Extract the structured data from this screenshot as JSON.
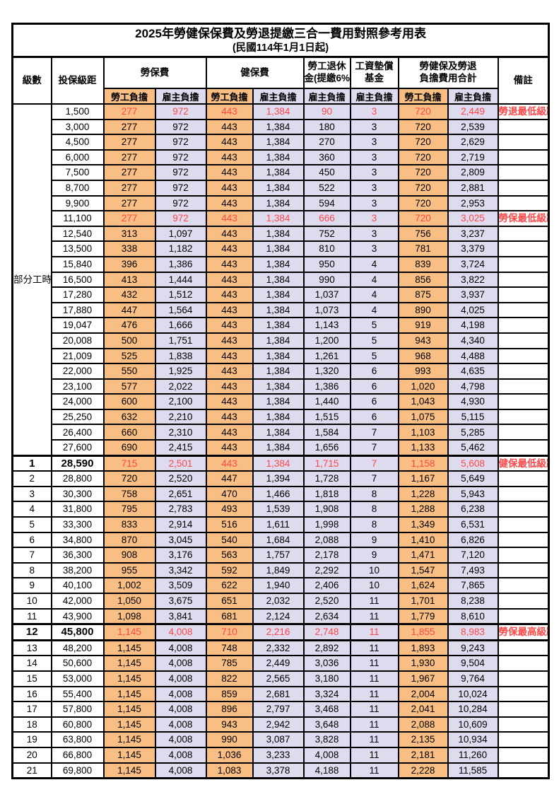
{
  "page": {
    "title": "2025年勞健保保費及勞退提繳三合一費用對照參考用表",
    "subtitle": "(民國114年1月1日起)"
  },
  "table": {
    "headers": {
      "level": "級數",
      "bracket": "投保級距",
      "labor_insurance": "勞保費",
      "health_insurance": "健保費",
      "pension": [
        "勞工退休",
        "金(提繳6%)"
      ],
      "wage_fund": [
        "工資墊償",
        "基金"
      ],
      "total": [
        "勞健保及勞退",
        "負擔費用合計"
      ],
      "remark": "備註",
      "employee_share": "勞工負擔",
      "employer_share": "雇主負擔"
    },
    "part_time_label": "部分工時",
    "part_time_row_count": 23,
    "colors": {
      "employee_bg": "#F8BE84",
      "employer_bg": "#DFDBEF",
      "highlight_red": "#FF4747"
    },
    "rows": [
      {
        "level": "",
        "bracket": "1,500",
        "values": [
          "277",
          "972",
          "443",
          "1,384",
          "90",
          "3",
          "720",
          "2,449"
        ],
        "remark": "勞退最低級距",
        "red": true
      },
      {
        "level": "",
        "bracket": "3,000",
        "values": [
          "277",
          "972",
          "443",
          "1,384",
          "180",
          "3",
          "720",
          "2,539"
        ]
      },
      {
        "level": "",
        "bracket": "4,500",
        "values": [
          "277",
          "972",
          "443",
          "1,384",
          "270",
          "3",
          "720",
          "2,629"
        ]
      },
      {
        "level": "",
        "bracket": "6,000",
        "values": [
          "277",
          "972",
          "443",
          "1,384",
          "360",
          "3",
          "720",
          "2,719"
        ]
      },
      {
        "level": "",
        "bracket": "7,500",
        "values": [
          "277",
          "972",
          "443",
          "1,384",
          "450",
          "3",
          "720",
          "2,809"
        ]
      },
      {
        "level": "",
        "bracket": "8,700",
        "values": [
          "277",
          "972",
          "443",
          "1,384",
          "522",
          "3",
          "720",
          "2,881"
        ]
      },
      {
        "level": "",
        "bracket": "9,900",
        "values": [
          "277",
          "972",
          "443",
          "1,384",
          "594",
          "3",
          "720",
          "2,953"
        ]
      },
      {
        "level": "",
        "bracket": "11,100",
        "values": [
          "277",
          "972",
          "443",
          "1,384",
          "666",
          "3",
          "720",
          "3,025"
        ],
        "remark": "勞保最低級距",
        "red": true
      },
      {
        "level": "",
        "bracket": "12,540",
        "values": [
          "313",
          "1,097",
          "443",
          "1,384",
          "752",
          "3",
          "756",
          "3,237"
        ]
      },
      {
        "level": "",
        "bracket": "13,500",
        "values": [
          "338",
          "1,182",
          "443",
          "1,384",
          "810",
          "3",
          "781",
          "3,379"
        ]
      },
      {
        "level": "",
        "bracket": "15,840",
        "values": [
          "396",
          "1,386",
          "443",
          "1,384",
          "950",
          "4",
          "839",
          "3,724"
        ]
      },
      {
        "level": "",
        "bracket": "16,500",
        "values": [
          "413",
          "1,444",
          "443",
          "1,384",
          "990",
          "4",
          "856",
          "3,822"
        ]
      },
      {
        "level": "",
        "bracket": "17,280",
        "values": [
          "432",
          "1,512",
          "443",
          "1,384",
          "1,037",
          "4",
          "875",
          "3,937"
        ]
      },
      {
        "level": "",
        "bracket": "17,880",
        "values": [
          "447",
          "1,564",
          "443",
          "1,384",
          "1,073",
          "4",
          "890",
          "4,025"
        ]
      },
      {
        "level": "",
        "bracket": "19,047",
        "values": [
          "476",
          "1,666",
          "443",
          "1,384",
          "1,143",
          "5",
          "919",
          "4,198"
        ]
      },
      {
        "level": "",
        "bracket": "20,008",
        "values": [
          "500",
          "1,751",
          "443",
          "1,384",
          "1,200",
          "5",
          "943",
          "4,340"
        ]
      },
      {
        "level": "",
        "bracket": "21,009",
        "values": [
          "525",
          "1,838",
          "443",
          "1,384",
          "1,261",
          "5",
          "968",
          "4,488"
        ]
      },
      {
        "level": "",
        "bracket": "22,000",
        "values": [
          "550",
          "1,925",
          "443",
          "1,384",
          "1,320",
          "6",
          "993",
          "4,635"
        ]
      },
      {
        "level": "",
        "bracket": "23,100",
        "values": [
          "577",
          "2,022",
          "443",
          "1,384",
          "1,386",
          "6",
          "1,020",
          "4,798"
        ]
      },
      {
        "level": "",
        "bracket": "24,000",
        "values": [
          "600",
          "2,100",
          "443",
          "1,384",
          "1,440",
          "6",
          "1,043",
          "4,930"
        ]
      },
      {
        "level": "",
        "bracket": "25,250",
        "values": [
          "632",
          "2,210",
          "443",
          "1,384",
          "1,515",
          "6",
          "1,075",
          "5,115"
        ]
      },
      {
        "level": "",
        "bracket": "26,400",
        "values": [
          "660",
          "2,310",
          "443",
          "1,384",
          "1,584",
          "7",
          "1,103",
          "5,285"
        ]
      },
      {
        "level": "",
        "bracket": "27,600",
        "values": [
          "690",
          "2,415",
          "443",
          "1,384",
          "1,656",
          "7",
          "1,133",
          "5,462"
        ]
      },
      {
        "level": "1",
        "bracket": "28,590",
        "values": [
          "715",
          "2,501",
          "443",
          "1,384",
          "1,715",
          "7",
          "1,158",
          "5,608"
        ],
        "remark": "健保最低級距",
        "red": true,
        "bold": true,
        "thick_top": true
      },
      {
        "level": "2",
        "bracket": "28,800",
        "values": [
          "720",
          "2,520",
          "447",
          "1,394",
          "1,728",
          "7",
          "1,167",
          "5,649"
        ]
      },
      {
        "level": "3",
        "bracket": "30,300",
        "values": [
          "758",
          "2,651",
          "470",
          "1,466",
          "1,818",
          "8",
          "1,228",
          "5,943"
        ]
      },
      {
        "level": "4",
        "bracket": "31,800",
        "values": [
          "795",
          "2,783",
          "493",
          "1,539",
          "1,908",
          "8",
          "1,288",
          "6,238"
        ]
      },
      {
        "level": "5",
        "bracket": "33,300",
        "values": [
          "833",
          "2,914",
          "516",
          "1,611",
          "1,998",
          "8",
          "1,349",
          "6,531"
        ]
      },
      {
        "level": "6",
        "bracket": "34,800",
        "values": [
          "870",
          "3,045",
          "540",
          "1,684",
          "2,088",
          "9",
          "1,410",
          "6,826"
        ]
      },
      {
        "level": "7",
        "bracket": "36,300",
        "values": [
          "908",
          "3,176",
          "563",
          "1,757",
          "2,178",
          "9",
          "1,471",
          "7,120"
        ]
      },
      {
        "level": "8",
        "bracket": "38,200",
        "values": [
          "955",
          "3,342",
          "592",
          "1,849",
          "2,292",
          "10",
          "1,547",
          "7,493"
        ]
      },
      {
        "level": "9",
        "bracket": "40,100",
        "values": [
          "1,002",
          "3,509",
          "622",
          "1,940",
          "2,406",
          "10",
          "1,624",
          "7,865"
        ]
      },
      {
        "level": "10",
        "bracket": "42,000",
        "values": [
          "1,050",
          "3,675",
          "651",
          "2,032",
          "2,520",
          "11",
          "1,701",
          "8,238"
        ]
      },
      {
        "level": "11",
        "bracket": "43,900",
        "values": [
          "1,098",
          "3,841",
          "681",
          "2,124",
          "2,634",
          "11",
          "1,779",
          "8,610"
        ]
      },
      {
        "level": "12",
        "bracket": "45,800",
        "values": [
          "1,145",
          "4,008",
          "710",
          "2,216",
          "2,748",
          "11",
          "1,855",
          "8,983"
        ],
        "remark": "勞保最高級距",
        "red": true,
        "bold": true,
        "thick_top": true,
        "thick_bottom": true
      },
      {
        "level": "13",
        "bracket": "48,200",
        "values": [
          "1,145",
          "4,008",
          "748",
          "2,332",
          "2,892",
          "11",
          "1,893",
          "9,243"
        ]
      },
      {
        "level": "14",
        "bracket": "50,600",
        "values": [
          "1,145",
          "4,008",
          "785",
          "2,449",
          "3,036",
          "11",
          "1,930",
          "9,504"
        ]
      },
      {
        "level": "15",
        "bracket": "53,000",
        "values": [
          "1,145",
          "4,008",
          "822",
          "2,565",
          "3,180",
          "11",
          "1,967",
          "9,764"
        ]
      },
      {
        "level": "16",
        "bracket": "55,400",
        "values": [
          "1,145",
          "4,008",
          "859",
          "2,681",
          "3,324",
          "11",
          "2,004",
          "10,024"
        ]
      },
      {
        "level": "17",
        "bracket": "57,800",
        "values": [
          "1,145",
          "4,008",
          "896",
          "2,797",
          "3,468",
          "11",
          "2,041",
          "10,284"
        ]
      },
      {
        "level": "18",
        "bracket": "60,800",
        "values": [
          "1,145",
          "4,008",
          "943",
          "2,942",
          "3,648",
          "11",
          "2,088",
          "10,609"
        ]
      },
      {
        "level": "19",
        "bracket": "63,800",
        "values": [
          "1,145",
          "4,008",
          "990",
          "3,087",
          "3,828",
          "11",
          "2,135",
          "10,934"
        ]
      },
      {
        "level": "20",
        "bracket": "66,800",
        "values": [
          "1,145",
          "4,008",
          "1,036",
          "3,233",
          "4,008",
          "11",
          "2,181",
          "11,260"
        ]
      },
      {
        "level": "21",
        "bracket": "69,800",
        "values": [
          "1,145",
          "4,008",
          "1,083",
          "3,378",
          "4,188",
          "11",
          "2,228",
          "11,585"
        ]
      }
    ]
  }
}
